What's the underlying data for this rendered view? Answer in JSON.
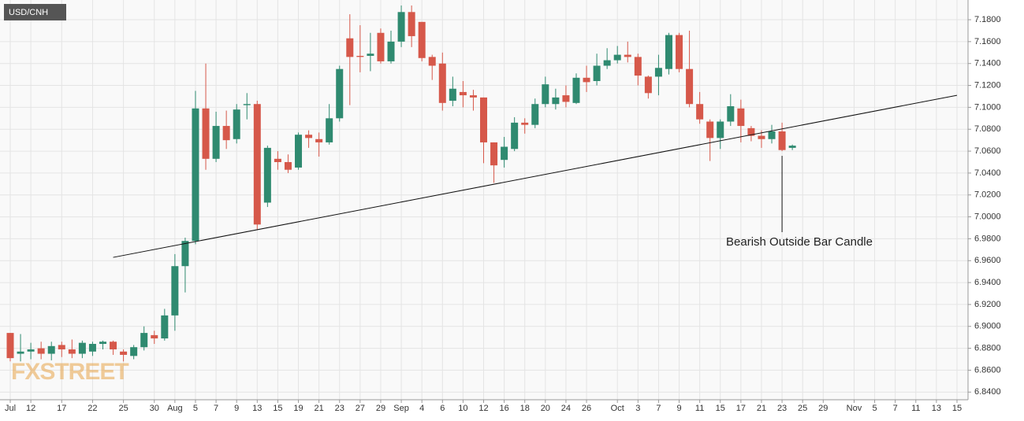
{
  "chart_data": {
    "type": "candlestick",
    "title": "USD/CNH",
    "watermark": "FXSTREET",
    "annotation": "Bearish Outside Bar Candle",
    "up_color": "#2f8a70",
    "down_color": "#d6584a",
    "grid": true,
    "categories": [
      "Jul",
      null,
      "12",
      null,
      null,
      "17",
      null,
      null,
      "22",
      null,
      null,
      "25",
      null,
      null,
      "30",
      null,
      "Aug",
      null,
      "5",
      null,
      "7",
      null,
      "9",
      null,
      "13",
      null,
      "15",
      null,
      "19",
      null,
      "21",
      null,
      "23",
      null,
      "27",
      null,
      "29",
      null,
      "Sep",
      null,
      "4",
      null,
      "6",
      null,
      "10",
      null,
      "12",
      null,
      "16",
      null,
      "18",
      null,
      "20",
      null,
      "24",
      null,
      "26",
      null,
      null,
      "Oct",
      null,
      "3",
      null,
      "7",
      null,
      "9",
      null,
      "11",
      null,
      "15",
      null,
      "17",
      null,
      "21",
      null,
      "23",
      null,
      "25",
      null,
      "29",
      null,
      null,
      "Nov",
      null,
      "5",
      null,
      "7",
      null,
      "11",
      null,
      "13",
      null,
      "15"
    ],
    "open": [
      6.894,
      6.875,
      6.877,
      6.88,
      6.875,
      6.883,
      6.879,
      6.875,
      6.877,
      6.884,
      6.886,
      6.877,
      6.873,
      6.881,
      6.892,
      6.889,
      6.91,
      6.955,
      6.978,
      7.099,
      7.053,
      7.083,
      7.071,
      7.102,
      7.103,
      7.013,
      7.053,
      7.05,
      7.045,
      7.075,
      7.071,
      7.068,
      7.09,
      7.163,
      7.147,
      7.147,
      7.168,
      7.142,
      7.16,
      7.187,
      7.178,
      7.146,
      7.14,
      7.106,
      7.114,
      7.111,
      7.109,
      7.068,
      7.052,
      7.062,
      7.086,
      7.084,
      7.103,
      7.103,
      7.111,
      7.104,
      7.127,
      7.124,
      7.138,
      7.143,
      7.148,
      7.146,
      7.128,
      7.128,
      7.135,
      7.166,
      7.135,
      7.103,
      7.087,
      7.072,
      7.087,
      7.099,
      7.081,
      7.074,
      7.071,
      7.078,
      7.063,
      null,
      null,
      null,
      null,
      null,
      null,
      null,
      null,
      null,
      null,
      null,
      null,
      null,
      null,
      null,
      null
    ],
    "high": [
      6.894,
      6.893,
      6.885,
      6.886,
      6.886,
      6.886,
      6.888,
      6.887,
      6.886,
      6.887,
      6.887,
      6.879,
      6.883,
      6.9,
      6.896,
      6.916,
      6.966,
      6.981,
      7.115,
      7.14,
      7.096,
      7.097,
      7.103,
      7.113,
      7.106,
      7.065,
      7.06,
      7.057,
      7.077,
      7.079,
      7.077,
      7.103,
      7.138,
      7.185,
      7.175,
      7.168,
      7.172,
      7.17,
      7.193,
      7.193,
      7.178,
      7.148,
      7.15,
      7.128,
      7.124,
      7.116,
      7.109,
      7.068,
      7.073,
      7.091,
      7.09,
      7.108,
      7.128,
      7.117,
      7.12,
      7.131,
      7.138,
      7.149,
      7.154,
      7.156,
      7.16,
      7.149,
      7.129,
      7.148,
      7.168,
      7.168,
      7.17,
      7.114,
      7.089,
      7.089,
      7.112,
      7.107,
      7.083,
      7.079,
      7.084,
      7.086,
      7.066,
      null,
      null,
      null,
      null,
      null,
      null,
      null,
      null,
      null,
      null,
      null,
      null,
      null,
      null,
      null,
      null
    ],
    "low": [
      6.868,
      6.868,
      6.87,
      6.87,
      6.869,
      6.872,
      6.871,
      6.871,
      6.873,
      6.879,
      6.874,
      6.868,
      6.87,
      6.878,
      6.884,
      6.887,
      6.896,
      6.931,
      6.975,
      7.043,
      7.05,
      7.062,
      7.067,
      7.089,
      6.988,
      7.009,
      7.043,
      7.04,
      7.043,
      7.063,
      7.055,
      7.066,
      7.087,
      7.102,
      7.132,
      7.133,
      7.14,
      7.14,
      7.155,
      7.155,
      7.142,
      7.125,
      7.097,
      7.101,
      7.1,
      7.097,
      7.049,
      7.031,
      7.045,
      7.06,
      7.076,
      7.081,
      7.1,
      7.098,
      7.1,
      7.103,
      7.114,
      7.12,
      7.135,
      7.14,
      7.141,
      7.12,
      7.108,
      7.111,
      7.13,
      7.132,
      7.1,
      7.085,
      7.051,
      7.062,
      7.083,
      7.068,
      7.069,
      7.063,
      7.067,
      7.06,
      7.061,
      null,
      null,
      null,
      null,
      null,
      null,
      null,
      null,
      null,
      null,
      null,
      null,
      null,
      null,
      null,
      null
    ],
    "close": [
      6.871,
      6.877,
      6.879,
      6.875,
      6.882,
      6.879,
      6.875,
      6.885,
      6.884,
      6.886,
      6.879,
      6.874,
      6.881,
      6.894,
      6.889,
      6.91,
      6.955,
      6.978,
      7.099,
      7.053,
      7.083,
      7.07,
      7.098,
      7.103,
      6.993,
      7.063,
      7.05,
      7.043,
      7.075,
      7.072,
      7.068,
      7.09,
      7.135,
      7.146,
      7.146,
      7.149,
      7.142,
      7.16,
      7.187,
      7.165,
      7.145,
      7.138,
      7.104,
      7.117,
      7.111,
      7.109,
      7.068,
      7.047,
      7.064,
      7.086,
      7.084,
      7.103,
      7.121,
      7.109,
      7.105,
      7.127,
      7.123,
      7.138,
      7.143,
      7.148,
      7.146,
      7.129,
      7.113,
      7.136,
      7.166,
      7.135,
      7.103,
      7.089,
      7.072,
      7.087,
      7.101,
      7.083,
      7.074,
      7.071,
      7.078,
      7.061,
      7.065,
      null,
      null,
      null,
      null,
      null,
      null,
      null,
      null,
      null,
      null,
      null,
      null,
      null,
      null,
      null,
      null
    ],
    "trendline": {
      "x": [
        10,
        92
      ],
      "values": [
        6.963,
        7.111
      ]
    },
    "annotation_index": 75,
    "ylim": [
      6.833,
      7.198
    ],
    "yticks": [
      {
        "value": 6.84,
        "label": "6.8400"
      },
      {
        "value": 6.86,
        "label": "6.8600"
      },
      {
        "value": 6.88,
        "label": "6.8800"
      },
      {
        "value": 6.9,
        "label": "6.9000"
      },
      {
        "value": 6.92,
        "label": "6.9200"
      },
      {
        "value": 6.94,
        "label": "6.9400"
      },
      {
        "value": 6.96,
        "label": "6.9600"
      },
      {
        "value": 6.98,
        "label": "6.9800"
      },
      {
        "value": 7.0,
        "label": "7.0000"
      },
      {
        "value": 7.02,
        "label": "7.0200"
      },
      {
        "value": 7.04,
        "label": "7.0400"
      },
      {
        "value": 7.06,
        "label": "7.0600"
      },
      {
        "value": 7.08,
        "label": "7.0800"
      },
      {
        "value": 7.1,
        "label": "7.1000"
      },
      {
        "value": 7.12,
        "label": "7.1200"
      },
      {
        "value": 7.14,
        "label": "7.1400"
      },
      {
        "value": 7.16,
        "label": "7.1600"
      },
      {
        "value": 7.18,
        "label": "7.1800"
      }
    ]
  }
}
